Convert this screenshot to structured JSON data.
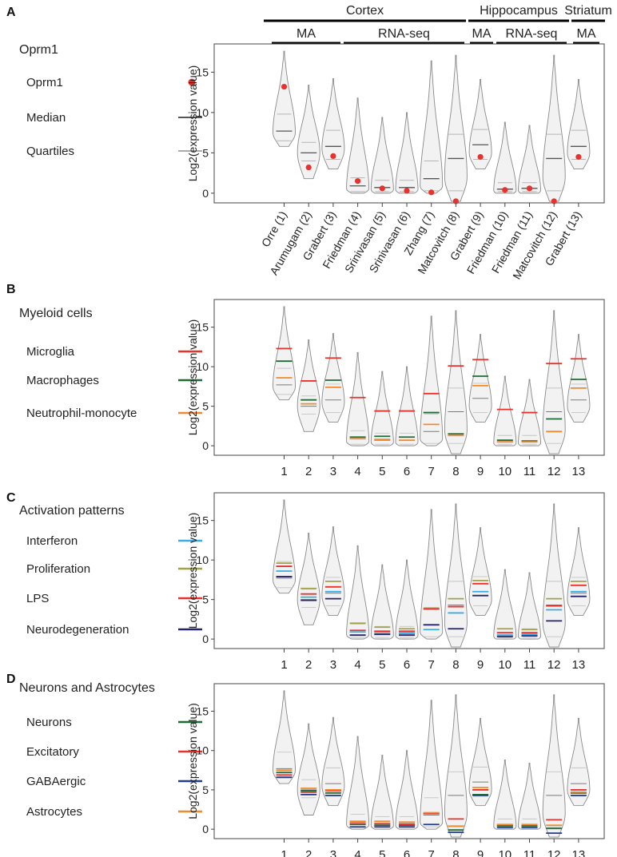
{
  "figure": {
    "header": {
      "regions": [
        "Cortex",
        "Hippocampus",
        "Striatum"
      ],
      "platforms": [
        "MA",
        "RNA-seq",
        "MA",
        "RNA-seq",
        "MA"
      ]
    },
    "ylabel": "Log2(expression value)",
    "yticks": [
      "0",
      "5",
      "10",
      "15"
    ],
    "dataset_labels": [
      "Orre (1)",
      "Arumugam (2)",
      "Grabert (3)",
      "Friedman (4)",
      "Srinivasan (5)",
      "Srinivasan (6)",
      "Zhang (7)",
      "Matcovitch (8)",
      "Grabert (9)",
      "Friedman (10)",
      "Friedman (11)",
      "Matcovitch (12)",
      "Grabert (13)"
    ],
    "dataset_numbers": [
      "1",
      "2",
      "3",
      "4",
      "5",
      "6",
      "7",
      "8",
      "9",
      "10",
      "11",
      "12",
      "13"
    ]
  },
  "panels": [
    {
      "letter": "A",
      "legend_title": "Oprm1",
      "legend": [
        {
          "label": "Oprm1",
          "color": "#e8322b",
          "symbol": "dot"
        },
        {
          "label": "Median",
          "color": "#555555",
          "symbol": "line"
        },
        {
          "label": "Quartiles",
          "color": "#aaaaaa",
          "symbol": "line"
        }
      ]
    },
    {
      "letter": "B",
      "legend_title": "Myeloid cells",
      "legend": [
        {
          "label": "Microglia",
          "color": "#e8322b"
        },
        {
          "label": "Macrophages",
          "color": "#1d6b35"
        },
        {
          "label": "Neutrophil-monocyte",
          "color": "#f08a2c"
        }
      ]
    },
    {
      "letter": "C",
      "legend_title": "Activation patterns",
      "legend": [
        {
          "label": "Interferon",
          "color": "#3aabe3"
        },
        {
          "label": "Proliferation",
          "color": "#a3a24a"
        },
        {
          "label": "LPS",
          "color": "#e8322b"
        },
        {
          "label": "Neurodegeneration",
          "color": "#23236f"
        }
      ]
    },
    {
      "letter": "D",
      "legend_title": "Neurons and Astrocytes",
      "legend": [
        {
          "label": "Neurons",
          "color": "#1d6b35"
        },
        {
          "label": "Excitatory",
          "color": "#e8322b"
        },
        {
          "label": "GABAergic",
          "color": "#223c8f"
        },
        {
          "label": "Astrocytes",
          "color": "#f08a2c"
        }
      ]
    }
  ],
  "chart_data": [
    {
      "type": "violin",
      "panel": "A",
      "ylabel": "Log2(expression value)",
      "ylim": [
        -1.2,
        18.5
      ],
      "yticks": [
        0,
        5,
        10,
        15
      ],
      "violins": [
        {
          "min": 5.8,
          "max": 17.6,
          "q1": 6.5,
          "median": 7.7,
          "q3": 9.8,
          "mode": 7.5
        },
        {
          "min": 1.8,
          "max": 13.4,
          "q1": 4.0,
          "median": 5.0,
          "q3": 6.3,
          "mode": 5.0
        },
        {
          "min": 3.0,
          "max": 14.2,
          "q1": 4.2,
          "median": 5.8,
          "q3": 7.8,
          "mode": 5.5
        },
        {
          "min": 0.0,
          "max": 11.8,
          "q1": 0.2,
          "median": 0.9,
          "q3": 1.9,
          "mode": 0.5
        },
        {
          "min": 0.0,
          "max": 9.4,
          "q1": 0.2,
          "median": 0.7,
          "q3": 1.6,
          "mode": 0.4
        },
        {
          "min": 0.0,
          "max": 10.0,
          "q1": 0.2,
          "median": 0.7,
          "q3": 1.6,
          "mode": 0.4
        },
        {
          "min": 0.0,
          "max": 16.4,
          "q1": 0.3,
          "median": 1.8,
          "q3": 4.0,
          "mode": 0.8
        },
        {
          "min": -1.0,
          "max": 17.1,
          "q1": 0.3,
          "median": 4.3,
          "q3": 7.3,
          "mode": 2.0
        },
        {
          "min": 3.0,
          "max": 14.1,
          "q1": 4.2,
          "median": 6.0,
          "q3": 7.9,
          "mode": 5.0
        },
        {
          "min": 0.0,
          "max": 8.8,
          "q1": 0.2,
          "median": 0.5,
          "q3": 1.3,
          "mode": 0.3
        },
        {
          "min": 0.0,
          "max": 8.4,
          "q1": 0.2,
          "median": 0.6,
          "q3": 1.3,
          "mode": 0.3
        },
        {
          "min": -1.0,
          "max": 17.1,
          "q1": 0.3,
          "median": 4.3,
          "q3": 7.3,
          "mode": 2.0
        },
        {
          "min": 3.0,
          "max": 14.1,
          "q1": 4.2,
          "median": 5.8,
          "q3": 7.8,
          "mode": 5.0
        }
      ],
      "markers": [
        {
          "name": "Oprm1",
          "style": "dot",
          "color": "#e8322b",
          "values": [
            13.2,
            3.2,
            4.6,
            1.5,
            0.6,
            0.3,
            0.1,
            -1.0,
            4.5,
            0.4,
            0.6,
            -1.0,
            4.5
          ]
        }
      ]
    },
    {
      "type": "violin",
      "panel": "B",
      "ylabel": "Log2(expression value)",
      "ylim": [
        -1.2,
        18.5
      ],
      "yticks": [
        0,
        5,
        10,
        15
      ],
      "markers": [
        {
          "name": "Microglia",
          "color": "#e8322b",
          "values": [
            12.3,
            8.2,
            11.1,
            6.1,
            4.4,
            4.4,
            6.6,
            10.1,
            10.9,
            4.6,
            4.2,
            10.4,
            11.0
          ]
        },
        {
          "name": "Macrophages",
          "color": "#1d6b35",
          "values": [
            10.7,
            5.8,
            8.3,
            1.1,
            1.2,
            1.1,
            4.2,
            1.5,
            8.8,
            0.7,
            0.6,
            3.4,
            8.4
          ]
        },
        {
          "name": "Neutrophil-monocyte",
          "color": "#f08a2c",
          "values": [
            8.6,
            5.3,
            7.4,
            0.9,
            0.8,
            0.7,
            2.7,
            1.3,
            7.6,
            0.5,
            0.5,
            1.8,
            7.3
          ]
        }
      ]
    },
    {
      "type": "violin",
      "panel": "C",
      "ylabel": "Log2(expression value)",
      "ylim": [
        -1.2,
        18.5
      ],
      "yticks": [
        0,
        5,
        10,
        15
      ],
      "markers": [
        {
          "name": "Interferon",
          "color": "#3aabe3",
          "values": [
            8.6,
            5.3,
            6.0,
            0.9,
            0.9,
            0.8,
            1.2,
            3.3,
            6.0,
            0.5,
            0.6,
            3.7,
            6.0
          ]
        },
        {
          "name": "Proliferation",
          "color": "#a3a24a",
          "values": [
            9.6,
            6.4,
            7.3,
            2.0,
            1.5,
            1.3,
            3.9,
            5.1,
            7.4,
            1.3,
            1.2,
            5.1,
            7.3
          ]
        },
        {
          "name": "LPS",
          "color": "#e8322b",
          "values": [
            9.2,
            5.7,
            6.6,
            1.1,
            1.0,
            1.0,
            3.8,
            4.1,
            7.0,
            0.8,
            0.8,
            4.2,
            6.8
          ]
        },
        {
          "name": "Neurodegeneration",
          "color": "#23236f",
          "values": [
            7.9,
            4.9,
            5.1,
            0.5,
            0.6,
            0.5,
            1.8,
            1.3,
            5.5,
            0.3,
            0.4,
            2.3,
            5.4
          ]
        }
      ]
    },
    {
      "type": "violin",
      "panel": "D",
      "ylabel": "Log2(expression value)",
      "ylim": [
        -1.2,
        18.5
      ],
      "yticks": [
        0,
        5,
        10,
        15
      ],
      "markers": [
        {
          "name": "Neurons",
          "color": "#1d6b35",
          "values": [
            7.2,
            4.9,
            4.6,
            0.6,
            0.5,
            0.5,
            2.0,
            -0.1,
            4.4,
            0.4,
            0.4,
            0.1,
            4.6
          ]
        },
        {
          "name": "Excitatory",
          "color": "#e8322b",
          "values": [
            6.9,
            4.7,
            4.9,
            0.7,
            0.7,
            0.6,
            2.0,
            1.3,
            5.0,
            0.5,
            0.5,
            1.2,
            5.0
          ]
        },
        {
          "name": "GABAergic",
          "color": "#223c8f",
          "values": [
            6.6,
            4.4,
            4.3,
            0.3,
            0.3,
            0.3,
            0.6,
            -0.4,
            4.3,
            0.2,
            0.2,
            -0.5,
            4.3
          ]
        },
        {
          "name": "Astrocytes",
          "color": "#f08a2c",
          "values": [
            7.5,
            5.2,
            5.0,
            1.0,
            1.0,
            0.9,
            2.1,
            0.4,
            5.3,
            0.6,
            0.6,
            0.5,
            4.7
          ]
        }
      ]
    }
  ]
}
